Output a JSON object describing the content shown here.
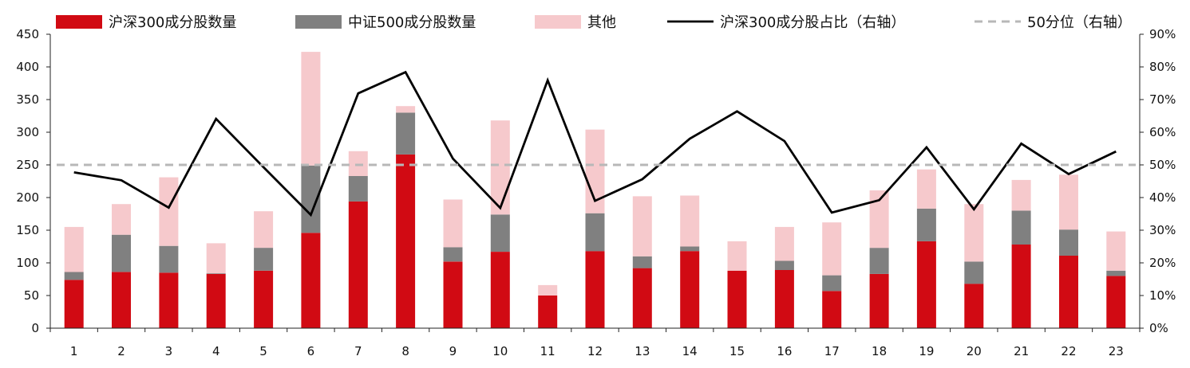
{
  "chart_data": {
    "type": "bar",
    "stacked": true,
    "categories": [
      "1",
      "2",
      "3",
      "4",
      "5",
      "6",
      "7",
      "8",
      "9",
      "10",
      "11",
      "12",
      "13",
      "14",
      "15",
      "16",
      "17",
      "18",
      "19",
      "20",
      "21",
      "22",
      "23"
    ],
    "series": [
      {
        "name": "沪深300成分股数量",
        "type": "bar",
        "axis": "left",
        "color": "#d10a13",
        "values": [
          74,
          86,
          85,
          83,
          88,
          146,
          194,
          266,
          102,
          117,
          50,
          118,
          92,
          118,
          88,
          89,
          57,
          83,
          133,
          68,
          128,
          111,
          80
        ]
      },
      {
        "name": "中证500成分股数量",
        "type": "bar",
        "axis": "left",
        "color": "#808080",
        "values": [
          12,
          57,
          41,
          1,
          35,
          103,
          39,
          64,
          22,
          57,
          0,
          58,
          18,
          7,
          0,
          14,
          24,
          40,
          50,
          34,
          52,
          40,
          8
        ]
      },
      {
        "name": "其他",
        "type": "bar",
        "axis": "left",
        "color": "#f6c9cc",
        "values": [
          69,
          47,
          105,
          46,
          56,
          174,
          38,
          10,
          73,
          144,
          16,
          128,
          92,
          78,
          45,
          52,
          81,
          88,
          60,
          88,
          47,
          84,
          60
        ]
      },
      {
        "name": "沪深300成分股占比（右轴）",
        "type": "line",
        "axis": "right",
        "color": "#000000",
        "values": [
          47.7,
          45.3,
          36.9,
          64.1,
          49.3,
          34.7,
          71.9,
          78.4,
          51.9,
          36.8,
          75.9,
          39.0,
          45.6,
          58.0,
          66.4,
          57.3,
          35.4,
          39.2,
          55.4,
          36.4,
          56.5,
          47.2,
          54.1
        ]
      },
      {
        "name": "50分位（右轴）",
        "type": "line",
        "dashed": true,
        "axis": "right",
        "color": "#b8b8b8",
        "values": [
          50,
          50,
          50,
          50,
          50,
          50,
          50,
          50,
          50,
          50,
          50,
          50,
          50,
          50,
          50,
          50,
          50,
          50,
          50,
          50,
          50,
          50,
          50
        ]
      }
    ],
    "y_left": {
      "min": 0,
      "max": 450,
      "ticks": [
        "0",
        "50",
        "100",
        "150",
        "200",
        "250",
        "300",
        "350",
        "400",
        "450"
      ]
    },
    "y_right": {
      "min": 0,
      "max": 90,
      "ticks": [
        "0%",
        "10%",
        "20%",
        "30%",
        "40%",
        "50%",
        "60%",
        "70%",
        "80%",
        "90%"
      ]
    },
    "grid": false,
    "legend_position": "top"
  }
}
